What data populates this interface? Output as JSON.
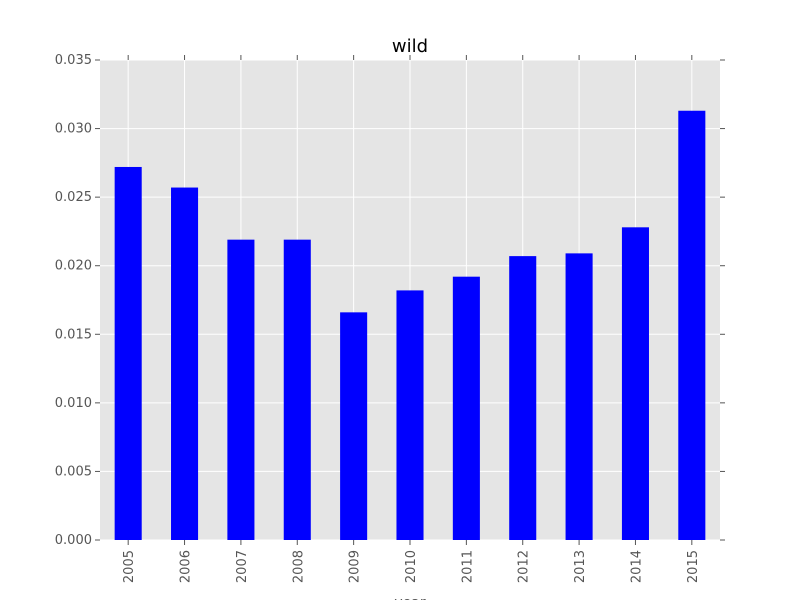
{
  "chart_data": {
    "type": "bar",
    "title": "wild",
    "xlabel": "year",
    "ylabel": "",
    "categories": [
      "2005",
      "2006",
      "2007",
      "2008",
      "2009",
      "2010",
      "2011",
      "2012",
      "2013",
      "2014",
      "2015"
    ],
    "values": [
      0.0272,
      0.0257,
      0.0219,
      0.0219,
      0.0166,
      0.0182,
      0.0192,
      0.0207,
      0.0209,
      0.0228,
      0.0313
    ],
    "ylim": [
      0,
      0.035
    ],
    "yticks": [
      "0.000",
      "0.005",
      "0.010",
      "0.015",
      "0.020",
      "0.025",
      "0.030",
      "0.035"
    ],
    "grid": true,
    "bar_color": "#0000ff",
    "background_color": "#e5e5e5",
    "grid_color": "#ffffff"
  }
}
